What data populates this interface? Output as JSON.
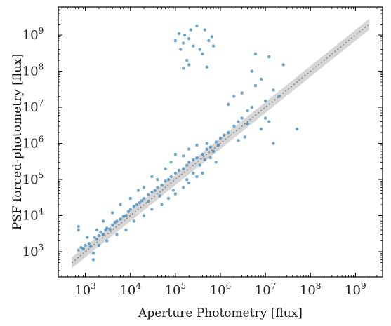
{
  "chart_data": {
    "type": "scatter",
    "title": "",
    "xlabel": "Aperture Photometry [flux]",
    "ylabel": "PSF forced-photometry [flux]",
    "xscale": "log",
    "yscale": "log",
    "xlim": [
      250,
      4000000000
    ],
    "ylim": [
      200,
      6000000000
    ],
    "x_ticks": [
      {
        "base": "10",
        "exp": "3",
        "value": 1000
      },
      {
        "base": "10",
        "exp": "4",
        "value": 10000
      },
      {
        "base": "10",
        "exp": "5",
        "value": 100000
      },
      {
        "base": "10",
        "exp": "6",
        "value": 1000000
      },
      {
        "base": "10",
        "exp": "7",
        "value": 10000000
      },
      {
        "base": "10",
        "exp": "8",
        "value": 100000000
      },
      {
        "base": "10",
        "exp": "9",
        "value": 1000000000
      }
    ],
    "y_ticks": [
      {
        "base": "10",
        "exp": "3",
        "value": 1000
      },
      {
        "base": "10",
        "exp": "4",
        "value": 10000
      },
      {
        "base": "10",
        "exp": "5",
        "value": 100000
      },
      {
        "base": "10",
        "exp": "6",
        "value": 1000000
      },
      {
        "base": "10",
        "exp": "7",
        "value": 10000000
      },
      {
        "base": "10",
        "exp": "8",
        "value": 100000000
      },
      {
        "base": "10",
        "exp": "9",
        "value": 1000000000
      }
    ],
    "grid": false,
    "legend": "none",
    "point_color": "#1f77b4",
    "reference_line": {
      "x": [
        500,
        2000000000
      ],
      "y": [
        500,
        2000000000
      ],
      "style": "dotted",
      "color": "#808080"
    },
    "reference_band": {
      "x": [
        500,
        2000000000
      ],
      "y_low": [
        350,
        1400000000
      ],
      "y_high": [
        700,
        2800000000
      ],
      "color": "#c8c8c8"
    },
    "series": [
      {
        "values": [
          {
            "x": 700,
            "y": 1100
          },
          {
            "x": 700,
            "y": 5000
          },
          {
            "x": 700,
            "y": 4000
          },
          {
            "x": 800,
            "y": 1300
          },
          {
            "x": 900,
            "y": 1200
          },
          {
            "x": 1000,
            "y": 1500
          },
          {
            "x": 1200,
            "y": 1700
          },
          {
            "x": 1300,
            "y": 1400
          },
          {
            "x": 1500,
            "y": 900
          },
          {
            "x": 1500,
            "y": 600
          },
          {
            "x": 1600,
            "y": 2500
          },
          {
            "x": 1800,
            "y": 2200
          },
          {
            "x": 2000,
            "y": 2800
          },
          {
            "x": 2200,
            "y": 3500
          },
          {
            "x": 2500,
            "y": 3000
          },
          {
            "x": 2800,
            "y": 4000
          },
          {
            "x": 3000,
            "y": 4500
          },
          {
            "x": 3500,
            "y": 4200
          },
          {
            "x": 4000,
            "y": 5500
          },
          {
            "x": 4500,
            "y": 6500
          },
          {
            "x": 5000,
            "y": 7000
          },
          {
            "x": 6000,
            "y": 8000
          },
          {
            "x": 7000,
            "y": 9500
          },
          {
            "x": 8000,
            "y": 10000
          },
          {
            "x": 9000,
            "y": 13000
          },
          {
            "x": 10000,
            "y": 15000
          },
          {
            "x": 12000,
            "y": 18000
          },
          {
            "x": 14000,
            "y": 20000
          },
          {
            "x": 16000,
            "y": 23000
          },
          {
            "x": 18000,
            "y": 26000
          },
          {
            "x": 20000,
            "y": 30000
          },
          {
            "x": 25000,
            "y": 38000
          },
          {
            "x": 30000,
            "y": 45000
          },
          {
            "x": 35000,
            "y": 50000
          },
          {
            "x": 40000,
            "y": 60000
          },
          {
            "x": 50000,
            "y": 70000
          },
          {
            "x": 60000,
            "y": 90000
          },
          {
            "x": 70000,
            "y": 100000
          },
          {
            "x": 80000,
            "y": 120000
          },
          {
            "x": 100000,
            "y": 150000
          },
          {
            "x": 120000,
            "y": 180000
          },
          {
            "x": 150000,
            "y": 200000
          },
          {
            "x": 180000,
            "y": 250000
          },
          {
            "x": 200000,
            "y": 300000
          },
          {
            "x": 250000,
            "y": 350000
          },
          {
            "x": 300000,
            "y": 400000
          },
          {
            "x": 400000,
            "y": 500000
          },
          {
            "x": 500000,
            "y": 700000
          },
          {
            "x": 600000,
            "y": 800000
          },
          {
            "x": 800000,
            "y": 1100000
          },
          {
            "x": 1000000,
            "y": 1400000
          },
          {
            "x": 1200000,
            "y": 1700000
          },
          {
            "x": 1500000,
            "y": 2000000
          },
          {
            "x": 2000000,
            "y": 3000000
          },
          {
            "x": 2500000,
            "y": 4000000
          },
          {
            "x": 3000000,
            "y": 5000000
          },
          {
            "x": 4000000,
            "y": 3500000
          },
          {
            "x": 4000000,
            "y": 8000000
          },
          {
            "x": 5000000,
            "y": 10000000
          },
          {
            "x": 1500000,
            "y": 12000000
          },
          {
            "x": 2000000,
            "y": 20000000
          },
          {
            "x": 3000000,
            "y": 25000000
          },
          {
            "x": 6000000,
            "y": 40000000
          },
          {
            "x": 8000000,
            "y": 60000000
          },
          {
            "x": 5000000,
            "y": 100000000
          },
          {
            "x": 6000000,
            "y": 300000000
          },
          {
            "x": 12000000,
            "y": 250000000
          },
          {
            "x": 25000000,
            "y": 150000000
          },
          {
            "x": 15000000,
            "y": 30000000
          },
          {
            "x": 10000000,
            "y": 15000000
          },
          {
            "x": 20000000,
            "y": 20000000
          },
          {
            "x": 10000000,
            "y": 5000000
          },
          {
            "x": 8000000,
            "y": 2500000
          },
          {
            "x": 12000000,
            "y": 4000000
          },
          {
            "x": 50000000,
            "y": 2500000
          },
          {
            "x": 15000000,
            "y": 1000000
          },
          {
            "x": 3500000,
            "y": 1500000
          },
          {
            "x": 2500000,
            "y": 1200000
          },
          {
            "x": 600000,
            "y": 400000
          },
          {
            "x": 800000,
            "y": 300000
          },
          {
            "x": 400000,
            "y": 150000
          },
          {
            "x": 300000,
            "y": 120000
          },
          {
            "x": 200000,
            "y": 80000
          },
          {
            "x": 150000,
            "y": 60000
          },
          {
            "x": 100000,
            "y": 40000
          },
          {
            "x": 70000,
            "y": 30000
          },
          {
            "x": 50000,
            "y": 20000
          },
          {
            "x": 30000,
            "y": 15000
          },
          {
            "x": 20000,
            "y": 10000
          },
          {
            "x": 12000,
            "y": 7000
          },
          {
            "x": 8000,
            "y": 4000
          },
          {
            "x": 5000,
            "y": 3000
          },
          {
            "x": 3000,
            "y": 2000
          },
          {
            "x": 2000,
            "y": 1500
          },
          {
            "x": 40000,
            "y": 100000
          },
          {
            "x": 30000,
            "y": 120000
          },
          {
            "x": 20000,
            "y": 60000
          },
          {
            "x": 15000,
            "y": 50000
          },
          {
            "x": 10000,
            "y": 30000
          },
          {
            "x": 60000,
            "y": 200000
          },
          {
            "x": 80000,
            "y": 300000
          },
          {
            "x": 100000,
            "y": 500000
          },
          {
            "x": 200000,
            "y": 700000
          },
          {
            "x": 300000,
            "y": 900000
          },
          {
            "x": 500000,
            "y": 1000000
          },
          {
            "x": 700000,
            "y": 600000
          },
          {
            "x": 900000,
            "y": 900000
          },
          {
            "x": 150000,
            "y": 450000
          },
          {
            "x": 250000,
            "y": 150000
          },
          {
            "x": 350000,
            "y": 250000
          },
          {
            "x": 450000,
            "y": 350000
          },
          {
            "x": 180000,
            "y": 100000
          },
          {
            "x": 90000,
            "y": 50000
          },
          {
            "x": 45000,
            "y": 35000
          },
          {
            "x": 25000,
            "y": 25000
          },
          {
            "x": 6000,
            "y": 20000
          },
          {
            "x": 4000,
            "y": 12000
          },
          {
            "x": 2500,
            "y": 7000
          },
          {
            "x": 1800,
            "y": 4000
          },
          {
            "x": 1100,
            "y": 2500
          },
          {
            "x": 160000,
            "y": 1000000000
          },
          {
            "x": 220000,
            "y": 1400000000
          },
          {
            "x": 300000,
            "y": 1800000000
          },
          {
            "x": 450000,
            "y": 1400000000
          },
          {
            "x": 200000,
            "y": 800000000
          },
          {
            "x": 150000,
            "y": 600000000
          },
          {
            "x": 250000,
            "y": 500000000
          },
          {
            "x": 350000,
            "y": 400000000
          },
          {
            "x": 550000,
            "y": 700000000
          },
          {
            "x": 700000,
            "y": 500000000
          },
          {
            "x": 400000,
            "y": 300000000
          },
          {
            "x": 130000,
            "y": 400000000
          },
          {
            "x": 180000,
            "y": 200000000
          },
          {
            "x": 150000,
            "y": 120000000
          },
          {
            "x": 200000,
            "y": 150000000
          },
          {
            "x": 500000,
            "y": 130000000
          },
          {
            "x": 650000,
            "y": 900000000
          },
          {
            "x": 100000,
            "y": 700000000
          },
          {
            "x": 120000,
            "y": 1100000000
          }
        ]
      }
    ]
  }
}
